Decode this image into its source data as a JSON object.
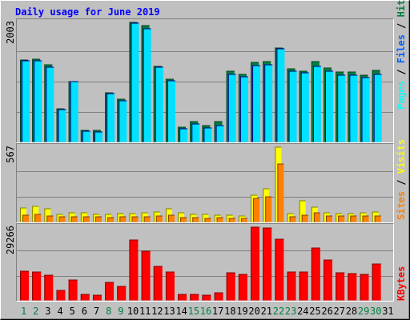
{
  "chart_data": [
    {
      "type": "bar",
      "panel": "hits-files-pages",
      "title": "Daily usage for June 2019",
      "categories": [
        "1",
        "2",
        "3",
        "4",
        "5",
        "6",
        "7",
        "8",
        "9",
        "10",
        "11",
        "12",
        "13",
        "14",
        "15",
        "16",
        "17",
        "18",
        "19",
        "20",
        "21",
        "22",
        "23",
        "24",
        "25",
        "26",
        "27",
        "28",
        "29",
        "30",
        "31"
      ],
      "weekend_days": [
        1,
        2,
        8,
        9,
        15,
        16,
        22,
        23,
        29,
        30
      ],
      "ymax_label": "2003",
      "ylim": [
        0,
        2003
      ],
      "series": [
        {
          "name": "Hits",
          "color": "#008040",
          "values": [
            1373,
            1384,
            1290,
            558,
            1012,
            194,
            194,
            826,
            720,
            2003,
            1943,
            1269,
            1050,
            248,
            350,
            276,
            348,
            1195,
            1136,
            1329,
            1343,
            1577,
            1229,
            1185,
            1345,
            1238,
            1169,
            1172,
            1121,
            1204,
            null
          ]
        },
        {
          "name": "Files",
          "color": "#00e0ff",
          "values": [
            1359,
            1361,
            1251,
            553,
            1011,
            183,
            171,
            808,
            697,
            1984,
            1901,
            1249,
            1025,
            224,
            304,
            245,
            281,
            1135,
            1092,
            1282,
            1293,
            1568,
            1192,
            1165,
            1263,
            1192,
            1121,
            1124,
            1082,
            1132,
            null
          ]
        },
        {
          "name": "Pages",
          "color": "#00ffff",
          "values": [
            null,
            null,
            null,
            null,
            null,
            null,
            null,
            null,
            null,
            null,
            null,
            null,
            null,
            null,
            null,
            null,
            null,
            null,
            null,
            null,
            null,
            null,
            null,
            null,
            null,
            null,
            null,
            null,
            null,
            null,
            null
          ]
        }
      ]
    },
    {
      "type": "bar",
      "panel": "sites-visits",
      "categories": [
        "1",
        "2",
        "3",
        "4",
        "5",
        "6",
        "7",
        "8",
        "9",
        "10",
        "11",
        "12",
        "13",
        "14",
        "15",
        "16",
        "17",
        "18",
        "19",
        "20",
        "21",
        "22",
        "23",
        "24",
        "25",
        "26",
        "27",
        "28",
        "29",
        "30",
        "31"
      ],
      "ymax_label": "567",
      "ylim": [
        0,
        567
      ],
      "series": [
        {
          "name": "Visits",
          "color": "#ffff00",
          "values": [
            106,
            122,
            104,
            62,
            71,
            72,
            61,
            60,
            69,
            69,
            75,
            76,
            103,
            72,
            62,
            60,
            55,
            55,
            49,
            208,
            255,
            567,
            65,
            160,
            114,
            73,
            66,
            64,
            71,
            76,
            null
          ]
        },
        {
          "name": "Sites",
          "color": "#ff8000",
          "values": [
            55,
            62,
            51,
            44,
            42,
            40,
            40,
            37,
            44,
            40,
            42,
            46,
            55,
            39,
            38,
            33,
            36,
            33,
            33,
            182,
            191,
            442,
            41,
            55,
            70,
            49,
            47,
            46,
            46,
            48,
            null
          ]
        }
      ]
    },
    {
      "type": "bar",
      "panel": "kbytes",
      "categories": [
        "1",
        "2",
        "3",
        "4",
        "5",
        "6",
        "7",
        "8",
        "9",
        "10",
        "11",
        "12",
        "13",
        "14",
        "15",
        "16",
        "17",
        "18",
        "19",
        "20",
        "21",
        "22",
        "23",
        "24",
        "25",
        "26",
        "27",
        "28",
        "29",
        "30",
        "31"
      ],
      "ymax_label": "29266",
      "ylim": [
        0,
        29266
      ],
      "series": [
        {
          "name": "KBytes",
          "color": "#ff0000",
          "values": [
            11810,
            11447,
            10174,
            4054,
            8230,
            2520,
            2233,
            7452,
            5620,
            24118,
            19847,
            13520,
            11380,
            2520,
            2656,
            2293,
            3035,
            11130,
            10385,
            29266,
            28889,
            24570,
            11510,
            11568,
            20878,
            16340,
            11100,
            10750,
            10386,
            14667,
            null
          ]
        }
      ]
    }
  ]
}
